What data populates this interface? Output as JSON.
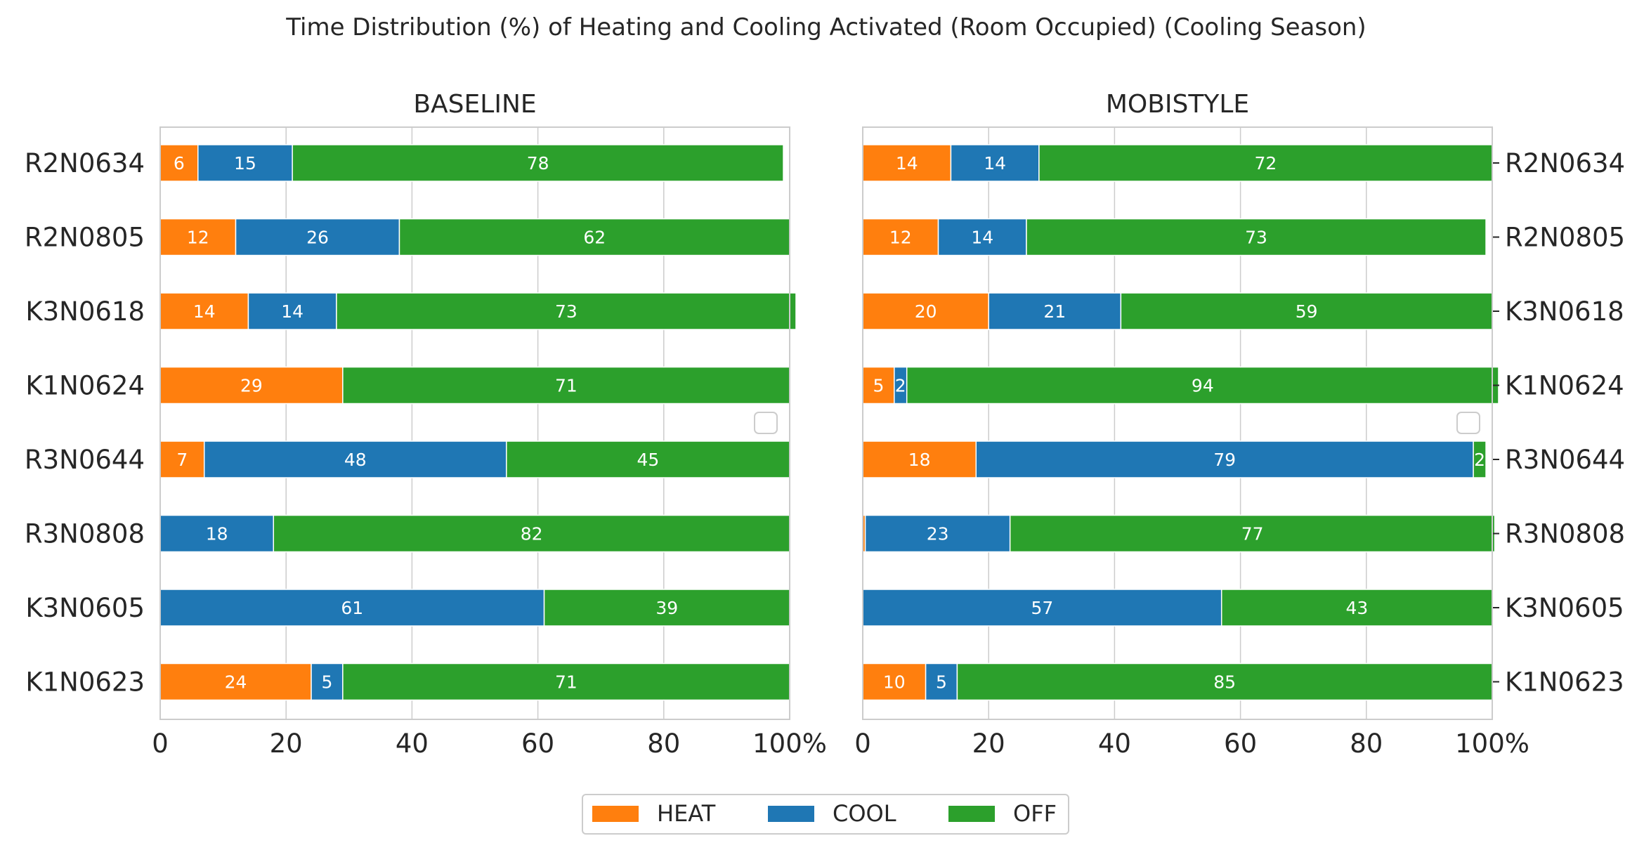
{
  "title": "Time Distribution (%) of Heating and Cooling Activated  (Room Occupied) (Cooling Season)",
  "colors": {
    "HEAT": "#ff7f0e",
    "COOL": "#1f77b4",
    "OFF": "#2ca02c"
  },
  "legend": {
    "items": [
      "HEAT",
      "COOL",
      "OFF"
    ],
    "position": "bottom-center"
  },
  "chart_data": [
    {
      "type": "bar",
      "orientation": "horizontal-stacked",
      "title": "BASELINE",
      "categories": [
        "R2N0634",
        "R2N0805",
        "K3N0618",
        "K1N0624",
        "R3N0644",
        "R3N0808",
        "K3N0605",
        "K1N0623"
      ],
      "series": [
        {
          "name": "HEAT",
          "values": [
            6,
            12,
            14,
            29,
            7,
            0,
            0,
            24
          ]
        },
        {
          "name": "COOL",
          "values": [
            15,
            26,
            14,
            0,
            48,
            18,
            61,
            5
          ]
        },
        {
          "name": "OFF",
          "values": [
            78,
            62,
            73,
            71,
            45,
            82,
            39,
            71
          ]
        }
      ],
      "xlim": [
        0,
        100
      ],
      "xticks": [
        "0",
        "20",
        "40",
        "60",
        "80",
        "100%"
      ],
      "grid": true
    },
    {
      "type": "bar",
      "orientation": "horizontal-stacked",
      "title": "MOBISTYLE",
      "categories": [
        "R2N0634",
        "R2N0805",
        "K3N0618",
        "K1N0624",
        "R3N0644",
        "R3N0808",
        "K3N0605",
        "K1N0623"
      ],
      "series": [
        {
          "name": "HEAT",
          "values": [
            14,
            12,
            20,
            5,
            18,
            0.4,
            0,
            10
          ]
        },
        {
          "name": "COOL",
          "values": [
            14,
            14,
            21,
            2,
            79,
            23,
            57,
            5
          ]
        },
        {
          "name": "OFF",
          "values": [
            72,
            73,
            59,
            94,
            2,
            77,
            43,
            85
          ]
        }
      ],
      "xlim": [
        0,
        100
      ],
      "xticks": [
        "0",
        "20",
        "40",
        "60",
        "80",
        "100%"
      ],
      "grid": true
    }
  ]
}
